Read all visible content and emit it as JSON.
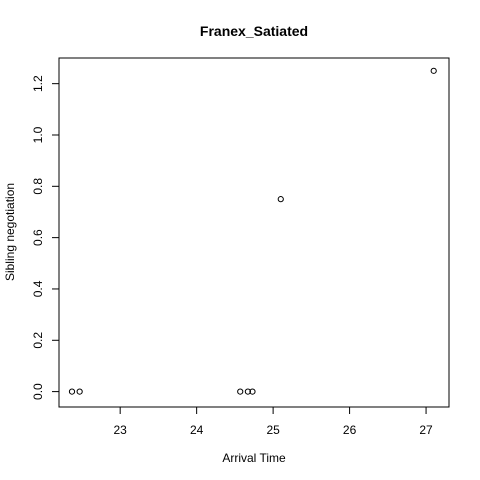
{
  "chart_data": {
    "type": "scatter",
    "title": "Franex_Satiated",
    "xlabel": "Arrival Time",
    "ylabel": "Sibling negotiation",
    "xlim": [
      22.2,
      27.3
    ],
    "ylim": [
      -0.06,
      1.3
    ],
    "xticks": [
      23,
      24,
      25,
      26,
      27
    ],
    "xtick_labels": [
      "23",
      "24",
      "25",
      "26",
      "27"
    ],
    "yticks": [
      0.0,
      0.2,
      0.4,
      0.6,
      0.8,
      1.0,
      1.2
    ],
    "ytick_labels": [
      "0.0",
      "0.2",
      "0.4",
      "0.6",
      "0.8",
      "1.0",
      "1.2"
    ],
    "grid": false,
    "points": [
      {
        "x": 22.37,
        "y": 0.0
      },
      {
        "x": 22.47,
        "y": 0.0
      },
      {
        "x": 24.57,
        "y": 0.0
      },
      {
        "x": 24.67,
        "y": 0.0
      },
      {
        "x": 24.73,
        "y": 0.0
      },
      {
        "x": 25.1,
        "y": 0.75
      },
      {
        "x": 27.1,
        "y": 1.25
      }
    ]
  }
}
